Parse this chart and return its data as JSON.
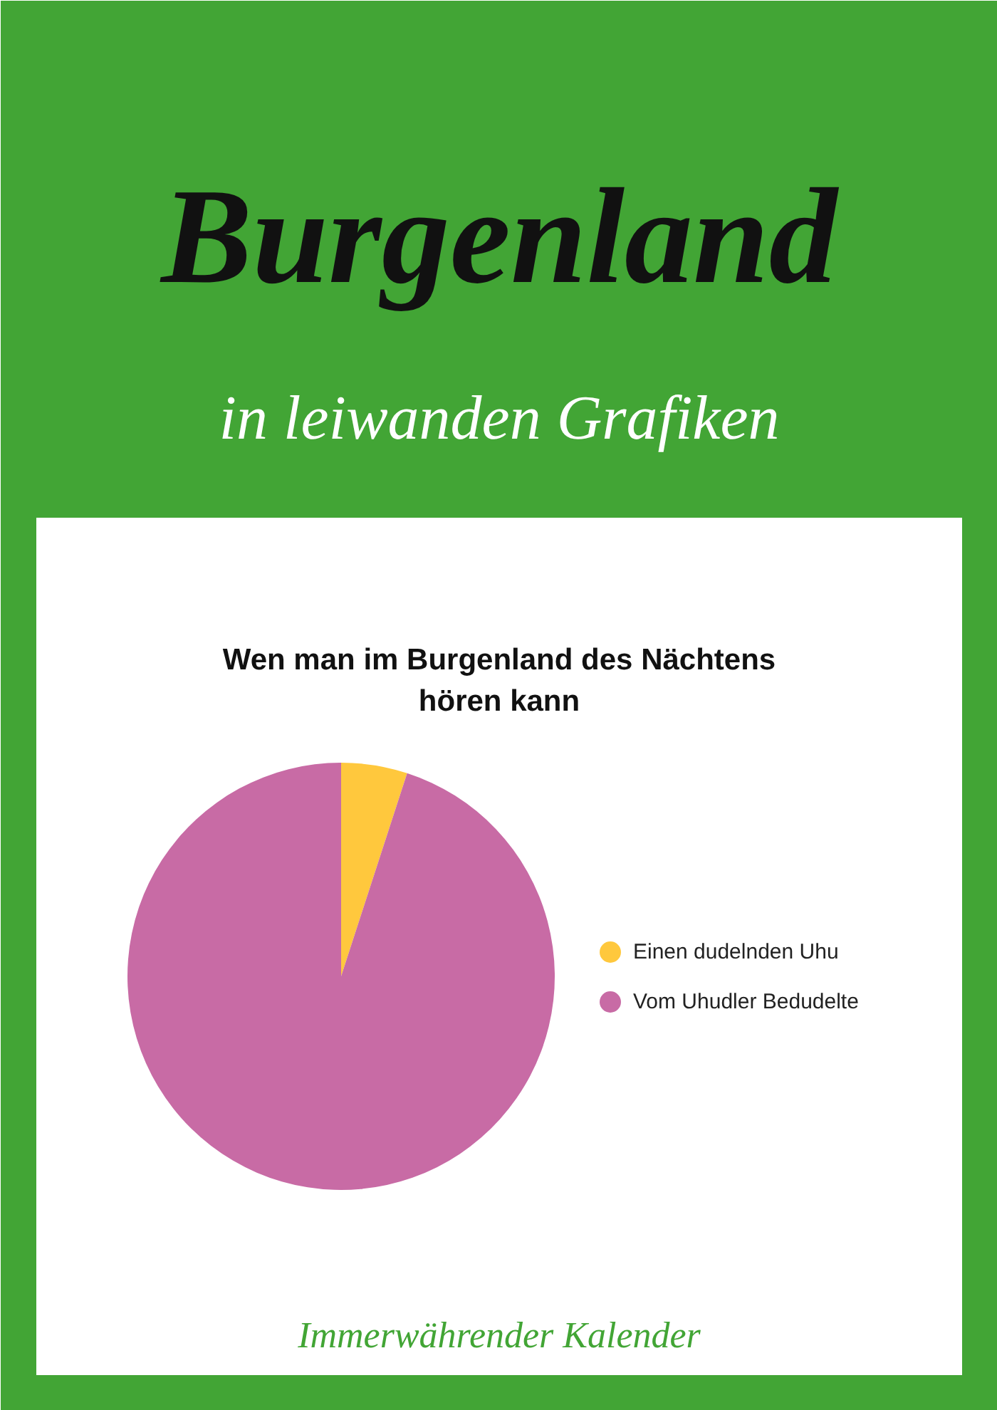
{
  "chart_data": {
    "type": "pie",
    "title": "Wen man im Burgenland des Nächtens hören kann",
    "categories": [
      "Einen dudelnden Uhu",
      "Vom Uhudler Bedudelte"
    ],
    "values": [
      5,
      95
    ],
    "colors": [
      "#ffc83d",
      "#c86ba5"
    ],
    "legend": "right",
    "annotations": [
      "Burgenland",
      "in leiwanden Grafiken",
      "Immerwährender Kalender"
    ]
  }
}
